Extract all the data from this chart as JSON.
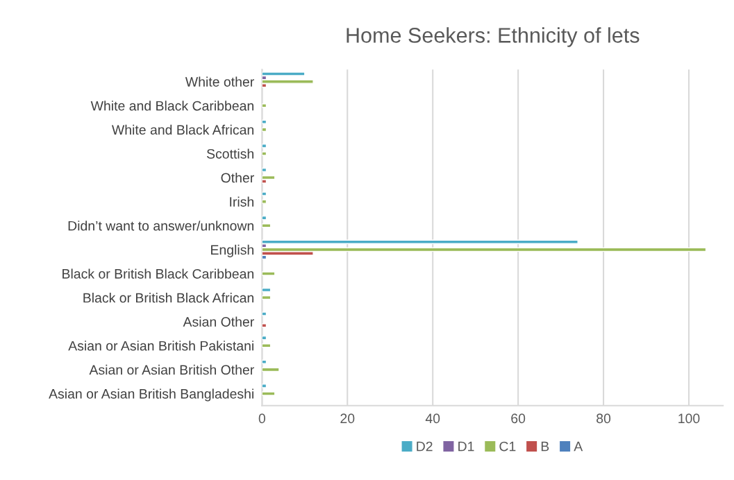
{
  "chart_data": {
    "type": "bar",
    "orientation": "horizontal",
    "title": "Home Seekers: Ethnicity of lets",
    "categories": [
      "White other",
      "White and Black Caribbean",
      "White and Black African",
      "Scottish",
      "Other",
      "Irish",
      "Didn’t want to answer/unknown",
      "English",
      "Black or British Black Caribbean",
      "Black or British Black African",
      "Asian Other",
      "Asian or Asian British Pakistani",
      "Asian or Asian British Other",
      "Asian or Asian British Bangladeshi"
    ],
    "series": [
      {
        "name": "D2",
        "color": "#4bacc6",
        "values": [
          10,
          null,
          1,
          1,
          1,
          1,
          1,
          74,
          null,
          2,
          1,
          1,
          1,
          1
        ]
      },
      {
        "name": "D1",
        "color": "#8064a2",
        "values": [
          1,
          null,
          null,
          null,
          null,
          null,
          null,
          1,
          null,
          null,
          null,
          null,
          null,
          null
        ]
      },
      {
        "name": "C1",
        "color": "#9bbb59",
        "values": [
          12,
          1,
          1,
          1,
          3,
          1,
          2,
          104,
          3,
          2,
          null,
          2,
          4,
          3
        ]
      },
      {
        "name": "B",
        "color": "#c0504d",
        "values": [
          1,
          null,
          null,
          null,
          1,
          null,
          null,
          12,
          null,
          null,
          1,
          null,
          null,
          null
        ]
      },
      {
        "name": "A",
        "color": "#4f81bd",
        "values": [
          null,
          null,
          null,
          null,
          null,
          null,
          null,
          1,
          null,
          null,
          null,
          null,
          null,
          null
        ]
      }
    ],
    "xlim": [
      0,
      108
    ],
    "xticks": [
      0,
      20,
      40,
      60,
      80,
      100
    ],
    "grid": "x",
    "legend": "bottom"
  }
}
